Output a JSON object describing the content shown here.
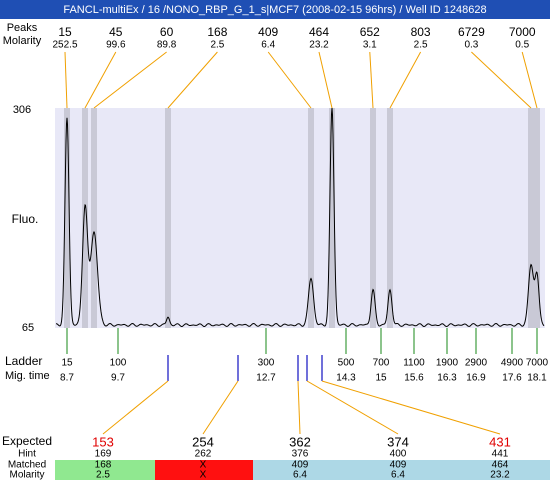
{
  "header": {
    "title": "FANCL-multiEx / 16 /NONO_RBP_G_1_s|MCF7 (2008-02-15 96hrs) / Well ID 1248628"
  },
  "peaks": {
    "label": "Peaks",
    "molarity_label": "Molarity",
    "sizes": [
      15,
      45,
      60,
      168,
      409,
      464,
      652,
      803,
      6729,
      7000
    ],
    "molarity": [
      252.5,
      99.6,
      89.8,
      2.5,
      6.4,
      23.2,
      3.1,
      2.5,
      0.3,
      0.5
    ]
  },
  "plot": {
    "y_label": "Fluo.",
    "y_max": 306,
    "y_min": 65
  },
  "ladder": {
    "label": "Ladder",
    "time_label": "Mig. time",
    "sizes": [
      15,
      100,
      300,
      500,
      700,
      1100,
      1900,
      2900,
      4900,
      7000
    ],
    "times": [
      8.7,
      9.7,
      12.7,
      14.3,
      15,
      15.6,
      16.3,
      16.9,
      17.6,
      18.1
    ]
  },
  "table": {
    "expected_label": "Expected",
    "hint_label": "Hint",
    "matched_label": "Matched",
    "molarity_label": "Molarity",
    "expected": [
      153,
      254,
      362,
      374,
      431
    ],
    "hint": [
      169,
      262,
      376,
      400,
      441
    ],
    "matched": [
      168,
      "X",
      409,
      409,
      464
    ],
    "molarity": [
      2.5,
      "X",
      6.4,
      6.4,
      23.2
    ]
  }
}
